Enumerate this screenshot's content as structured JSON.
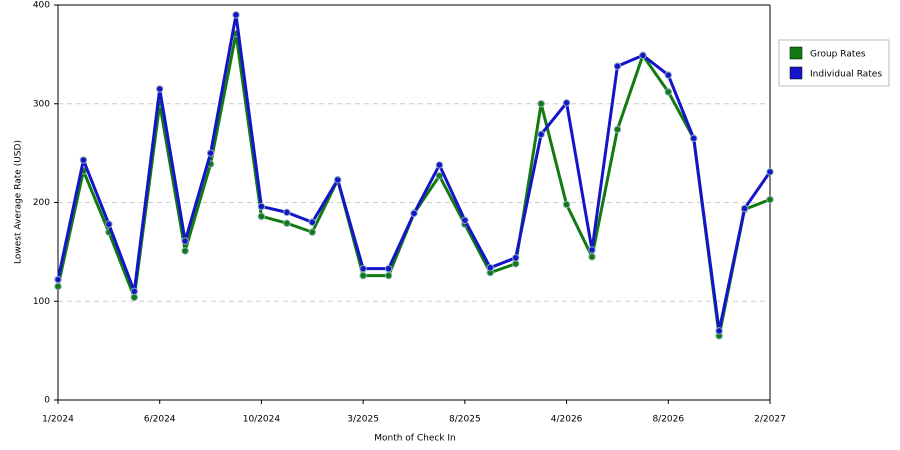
{
  "chart_data": {
    "type": "line",
    "x_label": "Month of Check In",
    "y_label": "Lowest Average Rate (USD)",
    "categories": [
      "1/2024",
      null,
      null,
      null,
      "6/2024",
      null,
      null,
      null,
      "10/2024",
      null,
      null,
      null,
      "3/2025",
      null,
      null,
      null,
      "8/2025",
      null,
      null,
      null,
      "4/2026",
      null,
      null,
      null,
      "8/2026",
      null,
      null,
      null,
      "2/2027"
    ],
    "series": [
      {
        "name": "Group Rates",
        "color": "#117a11",
        "values": [
          115,
          232,
          170,
          104,
          300,
          151,
          239,
          371,
          186,
          179,
          170,
          223,
          126,
          126,
          189,
          227,
          178,
          129,
          138,
          300,
          198,
          145,
          274,
          349,
          312,
          265,
          65,
          193,
          203
        ]
      },
      {
        "name": "Individual Rates",
        "color": "#1414c8",
        "values": [
          122,
          243,
          178,
          110,
          315,
          161,
          250,
          390,
          196,
          190,
          180,
          223,
          133,
          133,
          189,
          238,
          182,
          134,
          144,
          269,
          301,
          152,
          338,
          349,
          329,
          265,
          70,
          194,
          231
        ]
      }
    ],
    "ylim": [
      0,
      400
    ],
    "yticks": [
      0,
      100,
      200,
      300,
      400
    ],
    "grid": true,
    "legend": "right"
  }
}
